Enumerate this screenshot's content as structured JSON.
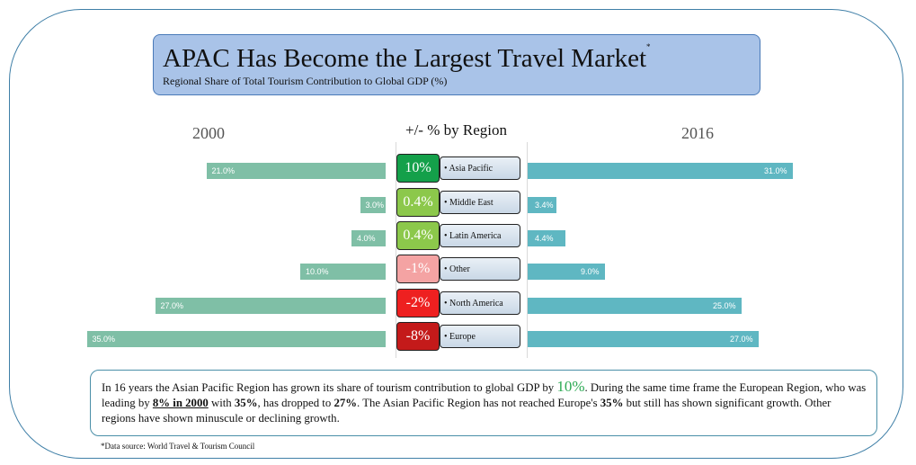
{
  "title": {
    "main": "APAC Has Become the Largest Travel Market",
    "mark": "*",
    "subtitle": "Regional Share of Total Tourism Contribution to Global GDP (%)"
  },
  "headers": {
    "left_year": "2000",
    "middle": "+/- % by Region",
    "right_year": "2016"
  },
  "chart_data": {
    "type": "bar",
    "categories": [
      "Asia Pacific",
      "Middle East",
      "Latin America",
      "Other",
      "North America",
      "Europe"
    ],
    "series": [
      {
        "name": "2000",
        "values": [
          21.0,
          3.0,
          4.0,
          10.0,
          27.0,
          35.0
        ],
        "labels": [
          "21.0%",
          "3.0%",
          "4.0%",
          "10.0%",
          "27.0%",
          "35.0%"
        ]
      },
      {
        "name": "2016",
        "values": [
          31.0,
          3.4,
          4.4,
          9.0,
          25.0,
          27.0
        ],
        "labels": [
          "31.0%",
          "3.4%",
          "4.4%",
          "9.0%",
          "25.0%",
          "27.0%"
        ]
      }
    ],
    "changes": [
      "10%",
      "0.4%",
      "0.4%",
      "-1%",
      "-2%",
      "-8%"
    ],
    "region_labels": [
      "• Asia Pacific",
      "• Middle East",
      "• Latin America",
      "• Other",
      "• North America",
      "• Europe"
    ],
    "change_colors": [
      "#14a04a",
      "#8cc84b",
      "#8cc84b",
      "#f4a3a3",
      "#ee2020",
      "#c41a1a"
    ],
    "series_colors": [
      "#7fbfa6",
      "#5fb7c2"
    ]
  },
  "paragraph": {
    "p1": "In 16 years the Asian Pacific Region has grown its share of tourism contribution to global GDP by ",
    "big": "10%",
    "p2": ". During the same time frame the European Region, who was leading by ",
    "lead": "8% in 2000",
    "p3": " with ",
    "v35a": "35%",
    "p4": ", has dropped to ",
    "v27": "27%",
    "p5": ". The Asian Pacific Region has not reached Europe's ",
    "v35b": "35%",
    "p6": " but still has shown significant growth. Other regions have shown minuscule or declining growth."
  },
  "source": "*Data source: World Travel & Tourism Council"
}
